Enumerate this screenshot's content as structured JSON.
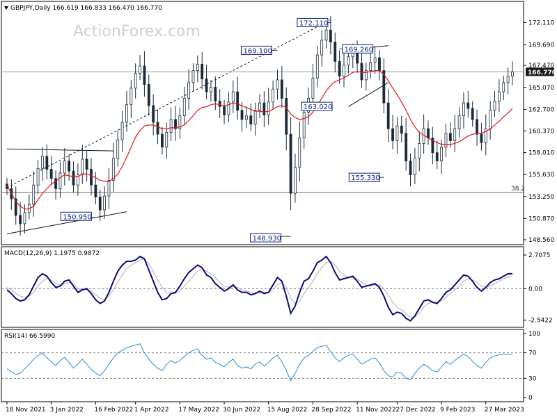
{
  "chart_data": [
    {
      "type": "candlestick",
      "symbol": "GBPJPY",
      "timeframe": "Daily",
      "ohlc": {
        "open": 166.619,
        "high": 166.833,
        "low": 166.47,
        "close": 166.77
      },
      "header_text": "GBPJPY,Daily  166.619 166.833 166.470 166.770",
      "watermark": "ActionForex.com",
      "ylim": [
        148.56,
        173.2
      ],
      "y_ticks": [
        "172.110",
        "169.690",
        "167.470",
        "165.070",
        "162.700",
        "160.370",
        "158.010",
        "155.630",
        "153.250",
        "150.870",
        "148.560"
      ],
      "y_tick_values": [
        172.11,
        169.69,
        167.47,
        165.07,
        162.7,
        160.37,
        158.01,
        155.63,
        153.25,
        150.87,
        148.56
      ],
      "last_price_label": "166.770",
      "last_price": 166.77,
      "x_ticks": [
        "18 Nov 2021",
        "3 Jan 2022",
        "16 Feb 2022",
        "1 Apr 2022",
        "17 May 2022",
        "30 Jun 2022",
        "15 Aug 2022",
        "28 Sep 2022",
        "11 Nov 2022",
        "27 Dec 2022",
        "9 Feb 2023",
        "27 Mar 2023"
      ],
      "annotations": [
        {
          "label": "150.950",
          "value": 150.95
        },
        {
          "label": "148.930",
          "value": 148.93
        },
        {
          "label": "169.100",
          "value": 169.1
        },
        {
          "label": "172.110",
          "value": 172.11
        },
        {
          "label": "169.260",
          "value": 169.26
        },
        {
          "label": "163.020",
          "value": 163.02
        },
        {
          "label": "155.330",
          "value": 155.33
        }
      ],
      "fib_label": "38.2",
      "fib_value": 153.7,
      "series": [
        {
          "name": "Close",
          "values": [
            154.1,
            153.0,
            151.2,
            150.3,
            151.5,
            152.4,
            154.5,
            156.3,
            157.6,
            156.2,
            155.2,
            154.1,
            155.8,
            157.1,
            156.0,
            154.5,
            155.6,
            157.3,
            156.2,
            154.5,
            153.2,
            151.8,
            153.3,
            155.0,
            157.4,
            159.4,
            161.3,
            163.2,
            165.0,
            166.6,
            167.4,
            165.4,
            163.1,
            161.3,
            160.0,
            158.6,
            160.2,
            161.6,
            160.6,
            162.0,
            163.9,
            165.6,
            166.9,
            167.6,
            166.0,
            164.6,
            165.1,
            163.6,
            163.0,
            162.1,
            163.5,
            164.6,
            162.6,
            161.6,
            162.0,
            161.1,
            162.6,
            163.4,
            162.1,
            163.5,
            164.9,
            165.9,
            163.9,
            160.0,
            153.6,
            156.4,
            159.6,
            162.4,
            163.9,
            166.1,
            168.6,
            170.2,
            171.3,
            170.0,
            167.9,
            166.3,
            167.5,
            168.4,
            168.9,
            167.7,
            165.9,
            166.9,
            167.8,
            168.3,
            166.9,
            163.4,
            160.6,
            159.3,
            160.9,
            160.1,
            157.1,
            155.6,
            157.4,
            159.0,
            160.6,
            159.6,
            158.0,
            157.1,
            158.6,
            160.1,
            159.3,
            160.6,
            162.0,
            163.4,
            162.8,
            161.6,
            160.0,
            159.1,
            160.6,
            162.6,
            163.6,
            164.6,
            165.6,
            166.3,
            166.77
          ],
          "ylim": [
            148.56,
            173.2
          ]
        },
        {
          "name": "MA",
          "values": [
            154.4,
            153.6,
            152.7,
            152.2,
            151.9,
            151.9,
            152.2,
            152.9,
            153.6,
            154.1,
            154.6,
            154.9,
            155.3,
            155.6,
            155.5,
            155.4,
            155.4,
            155.7,
            155.7,
            155.5,
            155.3,
            155.0,
            154.9,
            154.9,
            155.2,
            155.7,
            156.5,
            157.5,
            158.6,
            159.7,
            160.4,
            160.9,
            161.0,
            161.0,
            160.8,
            160.6,
            160.6,
            160.7,
            160.7,
            160.8,
            161.0,
            161.5,
            162.0,
            162.6,
            162.9,
            163.0,
            163.2,
            163.3,
            163.2,
            163.1,
            163.2,
            163.4,
            163.3,
            163.1,
            162.9,
            162.7,
            162.5,
            162.5,
            162.4,
            162.5,
            162.7,
            163.0,
            163.1,
            162.9,
            162.2,
            161.8,
            161.6,
            161.7,
            161.9,
            162.4,
            163.1,
            163.9,
            164.7,
            165.3,
            165.7,
            165.9,
            166.1,
            166.4,
            166.7,
            166.8,
            166.7,
            166.7,
            166.8,
            166.9,
            166.9,
            166.5,
            165.8,
            165.0,
            164.3,
            163.5,
            162.6,
            161.6,
            160.8,
            160.2,
            159.9,
            159.6,
            159.3,
            159.1,
            158.9,
            158.9,
            158.9,
            159.0,
            159.2,
            159.5,
            159.8,
            160.0,
            160.1,
            160.1,
            160.3,
            160.6,
            161.0,
            161.4,
            161.9,
            162.3,
            162.8
          ],
          "ylim": [
            148.56,
            173.2
          ]
        }
      ]
    },
    {
      "type": "line",
      "title": "MACD(12,26,9) 1.1975 0.9872",
      "ylim": [
        -2.9,
        3.1
      ],
      "y_ticks": [
        "2.7075",
        "0.00",
        "-2.5422"
      ],
      "y_tick_values": [
        2.7075,
        0.0,
        -2.5422
      ],
      "x_ticks": [
        "18 Nov 2021",
        "3 Jan 2022",
        "16 Feb 2022",
        "1 Apr 2022",
        "17 May 2022",
        "30 Jun 2022",
        "15 Aug 2022",
        "28 Sep 2022",
        "11 Nov 2022",
        "27 Dec 2022",
        "9 Feb 2023",
        "27 Mar 2023"
      ],
      "series": [
        {
          "name": "MACD",
          "values": [
            -0.1,
            -0.4,
            -0.8,
            -1.0,
            -0.9,
            -0.5,
            0.2,
            0.9,
            1.2,
            1.0,
            0.5,
            0.1,
            0.2,
            0.6,
            0.7,
            0.2,
            -0.3,
            -0.1,
            0.0,
            -0.4,
            -0.9,
            -1.2,
            -1.0,
            -0.3,
            0.6,
            1.4,
            1.9,
            2.2,
            2.2,
            2.3,
            2.6,
            2.4,
            1.5,
            0.6,
            -0.3,
            -0.9,
            -0.8,
            -0.4,
            -0.3,
            0.2,
            0.8,
            1.3,
            1.6,
            1.9,
            1.7,
            1.1,
            0.9,
            0.4,
            0.1,
            -0.2,
            0.0,
            0.3,
            -0.1,
            -0.3,
            -0.3,
            -0.5,
            -0.4,
            -0.2,
            -0.4,
            -0.3,
            0.3,
            0.9,
            0.6,
            -0.6,
            -2.0,
            -1.4,
            -0.3,
            0.6,
            0.8,
            1.4,
            2.1,
            2.3,
            2.6,
            2.1,
            1.3,
            0.7,
            0.8,
            0.9,
            1.0,
            0.6,
            0.1,
            0.2,
            0.3,
            0.4,
            0.1,
            -0.6,
            -1.5,
            -2.1,
            -1.9,
            -2.0,
            -2.4,
            -2.6,
            -2.2,
            -1.6,
            -1.0,
            -0.9,
            -1.1,
            -1.2,
            -0.8,
            -0.3,
            -0.1,
            0.3,
            0.7,
            1.1,
            1.0,
            0.6,
            0.1,
            -0.2,
            0.1,
            0.5,
            0.7,
            0.8,
            1.0,
            1.2,
            1.2
          ],
          "ylim": [
            -2.9,
            3.1
          ]
        },
        {
          "name": "Signal",
          "values": [
            0.1,
            -0.1,
            -0.4,
            -0.6,
            -0.7,
            -0.6,
            -0.3,
            0.2,
            0.6,
            0.8,
            0.7,
            0.4,
            0.3,
            0.4,
            0.5,
            0.4,
            0.0,
            -0.1,
            -0.1,
            -0.2,
            -0.5,
            -0.8,
            -0.9,
            -0.6,
            -0.1,
            0.5,
            1.1,
            1.6,
            1.9,
            2.1,
            2.3,
            2.4,
            2.0,
            1.4,
            0.7,
            0.1,
            -0.3,
            -0.4,
            -0.4,
            -0.2,
            0.2,
            0.6,
            1.0,
            1.4,
            1.6,
            1.4,
            1.2,
            0.9,
            0.5,
            0.2,
            0.1,
            0.2,
            0.1,
            -0.1,
            -0.2,
            -0.3,
            -0.4,
            -0.3,
            -0.3,
            -0.3,
            -0.1,
            0.3,
            0.5,
            0.1,
            -0.8,
            -1.2,
            -1.0,
            -0.4,
            0.1,
            0.6,
            1.2,
            1.7,
            2.1,
            2.2,
            1.9,
            1.4,
            1.1,
            0.9,
            0.9,
            0.8,
            0.5,
            0.3,
            0.2,
            0.3,
            0.3,
            0.0,
            -0.5,
            -1.1,
            -1.5,
            -1.7,
            -2.0,
            -2.3,
            -2.3,
            -2.0,
            -1.5,
            -1.2,
            -1.1,
            -1.1,
            -1.0,
            -0.7,
            -0.4,
            -0.1,
            0.2,
            0.6,
            0.8,
            0.7,
            0.5,
            0.2,
            0.1,
            0.2,
            0.4,
            0.6,
            0.8,
            0.9,
            1.0
          ],
          "ylim": [
            -2.9,
            3.1
          ]
        }
      ]
    },
    {
      "type": "line",
      "title": "RSI(14) 66.5990",
      "ylim": [
        0,
        100
      ],
      "y_ticks": [
        "100",
        "70",
        "30",
        "0"
      ],
      "y_tick_values": [
        100,
        70,
        30,
        0
      ],
      "x_ticks": [
        "18 Nov 2021",
        "3 Jan 2022",
        "16 Feb 2022",
        "1 Apr 2022",
        "17 May 2022",
        "30 Jun 2022",
        "15 Aug 2022",
        "28 Sep 2022",
        "11 Nov 2022",
        "27 Dec 2022",
        "9 Feb 2023",
        "27 Mar 2023"
      ],
      "series": [
        {
          "name": "RSI",
          "values": [
            45,
            40,
            36,
            38,
            45,
            52,
            60,
            66,
            70,
            62,
            56,
            50,
            58,
            63,
            55,
            46,
            52,
            60,
            52,
            44,
            38,
            34,
            42,
            52,
            62,
            70,
            74,
            78,
            80,
            82,
            84,
            70,
            60,
            52,
            46,
            42,
            52,
            58,
            54,
            58,
            64,
            70,
            74,
            76,
            66,
            60,
            62,
            55,
            52,
            48,
            55,
            60,
            50,
            46,
            48,
            45,
            52,
            56,
            49,
            55,
            62,
            66,
            56,
            42,
            26,
            38,
            52,
            62,
            66,
            72,
            78,
            80,
            82,
            72,
            62,
            56,
            62,
            66,
            68,
            60,
            52,
            56,
            60,
            62,
            54,
            42,
            34,
            32,
            40,
            38,
            30,
            28,
            38,
            46,
            52,
            48,
            42,
            40,
            48,
            56,
            52,
            58,
            63,
            68,
            64,
            57,
            50,
            46,
            55,
            62,
            65,
            67,
            68,
            68,
            66.6
          ],
          "ylim": [
            0,
            100
          ]
        }
      ]
    }
  ],
  "colors": {
    "candle": "#1a2a3a",
    "ma": "#e01818",
    "macd": "#0a0a7a",
    "signal": "#b0b0b0",
    "rsi": "#2a8ad8",
    "trend": "#111111",
    "label_box_border": "#0b1f7a",
    "last_price_bg": "#1a1a1a"
  }
}
